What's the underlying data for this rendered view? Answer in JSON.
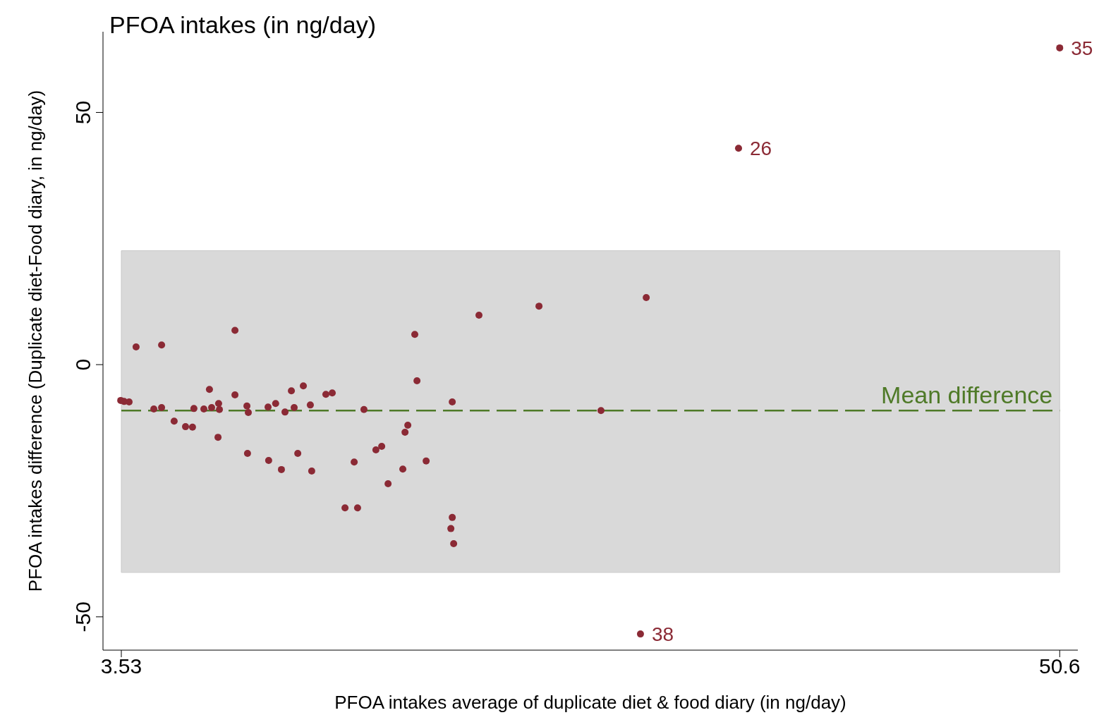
{
  "chart_data": {
    "type": "scatter",
    "title": "PFOA intakes (in ng/day)",
    "xlabel": "PFOA intakes average of duplicate diet & food diary (in ng/day)",
    "ylabel": "PFOA intakes difference (Duplicate diet-Food diary, in ng/day)",
    "x": [
      3.5,
      3.67,
      3.92,
      4.27,
      5.16,
      5.55,
      5.55,
      6.18,
      6.75,
      7.1,
      7.17,
      7.67,
      7.95,
      8.06,
      8.38,
      8.41,
      8.45,
      9.23,
      9.23,
      9.83,
      9.9,
      9.86,
      10.89,
      10.92,
      11.27,
      11.56,
      11.74,
      12.06,
      12.2,
      12.38,
      12.66,
      13.01,
      13.08,
      13.79,
      14.11,
      14.75,
      15.21,
      15.38,
      15.7,
      16.3,
      16.59,
      16.91,
      17.65,
      17.76,
      17.9,
      18.25,
      18.36,
      18.82,
      20.13,
      20.13,
      20.06,
      20.2,
      21.47,
      24.48,
      27.59,
      29.86,
      29.57,
      34.49,
      50.6
    ],
    "values": [
      -7.1,
      -7.3,
      -7.4,
      3.5,
      -8.8,
      3.9,
      -8.5,
      -11.2,
      -12.3,
      -12.4,
      -8.7,
      -8.8,
      -4.9,
      -8.5,
      -14.4,
      -7.7,
      -8.9,
      6.8,
      -6.0,
      -8.2,
      -9.5,
      -17.6,
      -8.4,
      -19.0,
      -7.7,
      -20.8,
      -9.4,
      -5.2,
      -8.5,
      -17.6,
      -4.2,
      -8.0,
      -21.1,
      -5.9,
      -5.6,
      -28.4,
      -19.3,
      -28.4,
      -8.9,
      -16.9,
      -16.2,
      -23.6,
      -20.7,
      -13.4,
      -12.0,
      6.0,
      -3.2,
      -19.1,
      -7.4,
      -30.3,
      -32.5,
      -35.5,
      9.8,
      11.6,
      -9.1,
      13.3,
      -53.4,
      42.9,
      62.8
    ],
    "color": "#8b2a35",
    "marker": "circle",
    "grid": false,
    "legend": false,
    "xlim": [
      2.61,
      51.51
    ],
    "xticks": [
      3.53,
      50.6
    ],
    "ylim": [
      -56.6,
      66
    ],
    "yticks": [
      -50,
      0,
      50
    ],
    "bands": [
      {
        "axis": "y",
        "from": -41.2,
        "to": 22.6,
        "color": "#d9d9d9"
      }
    ],
    "ref_lines": [
      {
        "axis": "y",
        "value": -9.1,
        "label": "Mean difference",
        "color": "#4f7a28",
        "line_style": "dashed"
      }
    ],
    "annotations": [
      {
        "text": "35",
        "x": 50.6,
        "y": 62.8
      },
      {
        "text": "26",
        "x": 34.49,
        "y": 42.9
      },
      {
        "text": "38",
        "x": 29.57,
        "y": -53.4
      }
    ]
  }
}
